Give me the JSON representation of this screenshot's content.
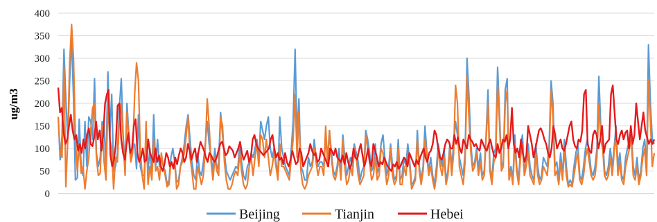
{
  "chart_data": {
    "type": "line",
    "title": "",
    "xlabel": "",
    "ylabel": "ug/m3",
    "ylim": [
      0,
      400
    ],
    "yticks": [
      0,
      50,
      100,
      150,
      200,
      250,
      300,
      350,
      400
    ],
    "grid": "horizontal",
    "legend": "bottom",
    "series": [
      {
        "name": "Beijing",
        "color": "#5B9BD5",
        "values": [
          170,
          75,
          130,
          320,
          210,
          120,
          250,
          345,
          210,
          30,
          35,
          165,
          60,
          40,
          160,
          60,
          170,
          160,
          120,
          255,
          90,
          60,
          80,
          160,
          150,
          60,
          270,
          130,
          220,
          50,
          60,
          90,
          190,
          255,
          130,
          60,
          200,
          130,
          80,
          100,
          110,
          55,
          175,
          60,
          40,
          40,
          130,
          50,
          100,
          40,
          175,
          60,
          120,
          60,
          80,
          60,
          50,
          20,
          30,
          80,
          100,
          70,
          25,
          30,
          60,
          80,
          110,
          150,
          175,
          120,
          70,
          40,
          30,
          90,
          50,
          40,
          70,
          110,
          160,
          110,
          80,
          50,
          100,
          50,
          70,
          180,
          130,
          90,
          50,
          40,
          30,
          40,
          50,
          60,
          55,
          110,
          70,
          40,
          30,
          60,
          70,
          90,
          80,
          100,
          120,
          70,
          160,
          140,
          120,
          150,
          170,
          100,
          80,
          100,
          70,
          40,
          170,
          100,
          80,
          60,
          50,
          40,
          100,
          160,
          320,
          130,
          210,
          60,
          50,
          30,
          30,
          80,
          60,
          70,
          120,
          80,
          60,
          70,
          70,
          60,
          120,
          80,
          140,
          90,
          50,
          40,
          60,
          100,
          40,
          130,
          80,
          40,
          60,
          80,
          60,
          110,
          90,
          70,
          30,
          50,
          60,
          140,
          120,
          90,
          50,
          60,
          110,
          45,
          60,
          110,
          130,
          80,
          40,
          60,
          110,
          60,
          30,
          40,
          120,
          30,
          40,
          80,
          60,
          110,
          70,
          20,
          25,
          40,
          140,
          60,
          30,
          60,
          150,
          90,
          50,
          80,
          40,
          20,
          60,
          110,
          80,
          60,
          100,
          30,
          50,
          110,
          60,
          110,
          160,
          130,
          80,
          60,
          40,
          90,
          300,
          220,
          110,
          60,
          70,
          100,
          55,
          90,
          40,
          50,
          130,
          230,
          60,
          30,
          90,
          100,
          280,
          180,
          60,
          70,
          230,
          255,
          40,
          60,
          30,
          130,
          60,
          30,
          100,
          130,
          50,
          70,
          110,
          60,
          40,
          30,
          110,
          60,
          30,
          40,
          80,
          70,
          60,
          110,
          250,
          200,
          60,
          70,
          30,
          90,
          40,
          120,
          60,
          20,
          30,
          20,
          60,
          90,
          110,
          40,
          30,
          60,
          100,
          120,
          90,
          50,
          40,
          60,
          100,
          260,
          150,
          130,
          50,
          40,
          60,
          100,
          60,
          100,
          150,
          60,
          90,
          40,
          30,
          80,
          100,
          120,
          140,
          60,
          40,
          80,
          30,
          50,
          100,
          120,
          60,
          330,
          200,
          120,
          110
        ]
      },
      {
        "name": "Tianjin",
        "color": "#ED7D31",
        "values": [
          170,
          90,
          80,
          280,
          15,
          120,
          290,
          375,
          300,
          120,
          50,
          110,
          45,
          60,
          10,
          50,
          80,
          140,
          190,
          200,
          80,
          40,
          45,
          150,
          70,
          30,
          200,
          120,
          100,
          10,
          80,
          70,
          160,
          200,
          120,
          40,
          180,
          120,
          70,
          90,
          220,
          290,
          250,
          90,
          40,
          10,
          160,
          20,
          60,
          30,
          120,
          50,
          60,
          30,
          90,
          60,
          40,
          15,
          20,
          70,
          60,
          70,
          10,
          20,
          60,
          70,
          90,
          130,
          170,
          80,
          50,
          10,
          10,
          60,
          40,
          20,
          40,
          100,
          210,
          150,
          70,
          30,
          80,
          50,
          40,
          170,
          150,
          70,
          30,
          10,
          10,
          20,
          40,
          50,
          40,
          90,
          50,
          20,
          10,
          20,
          60,
          80,
          40,
          80,
          110,
          60,
          130,
          120,
          80,
          120,
          80,
          40,
          60,
          90,
          60,
          30,
          110,
          60,
          60,
          50,
          40,
          30,
          80,
          120,
          220,
          80,
          180,
          50,
          20,
          10,
          20,
          40,
          50,
          60,
          100,
          70,
          40,
          60,
          60,
          40,
          150,
          60,
          140,
          80,
          40,
          30,
          50,
          80,
          30,
          120,
          60,
          20,
          30,
          60,
          40,
          100,
          80,
          40,
          20,
          30,
          40,
          130,
          100,
          70,
          30,
          40,
          80,
          30,
          40,
          100,
          90,
          60,
          20,
          40,
          100,
          40,
          20,
          30,
          100,
          20,
          20,
          60,
          40,
          90,
          60,
          10,
          20,
          30,
          120,
          50,
          20,
          50,
          120,
          80,
          40,
          60,
          30,
          10,
          40,
          100,
          60,
          40,
          80,
          20,
          40,
          100,
          40,
          90,
          240,
          200,
          60,
          40,
          20,
          70,
          260,
          170,
          90,
          50,
          60,
          90,
          40,
          70,
          30,
          40,
          120,
          200,
          50,
          20,
          70,
          80,
          240,
          160,
          50,
          60,
          200,
          230,
          30,
          50,
          20,
          110,
          50,
          20,
          80,
          110,
          40,
          60,
          90,
          40,
          30,
          20,
          90,
          40,
          20,
          30,
          60,
          50,
          40,
          90,
          230,
          170,
          40,
          50,
          20,
          70,
          30,
          100,
          40,
          15,
          20,
          15,
          40,
          70,
          90,
          30,
          20,
          40,
          80,
          100,
          70,
          40,
          30,
          40,
          80,
          200,
          120,
          100,
          40,
          30,
          40,
          80,
          40,
          90,
          130,
          40,
          70,
          30,
          20,
          60,
          80,
          100,
          120,
          40,
          30,
          60,
          20,
          40,
          80,
          100,
          40,
          250,
          160,
          60,
          90
        ]
      },
      {
        "name": "Hebei",
        "color": "#E41A1C",
        "values": [
          235,
          180,
          190,
          135,
          110,
          120,
          150,
          175,
          140,
          120,
          130,
          95,
          110,
          90,
          120,
          100,
          130,
          145,
          110,
          105,
          125,
          160,
          120,
          140,
          95,
          130,
          200,
          220,
          230,
          85,
          60,
          75,
          110,
          195,
          200,
          120,
          90,
          75,
          110,
          135,
          90,
          100,
          150,
          165,
          90,
          70,
          80,
          100,
          70,
          75,
          120,
          90,
          80,
          70,
          100,
          70,
          85,
          60,
          50,
          65,
          90,
          80,
          60,
          70,
          55,
          80,
          65,
          85,
          100,
          90,
          70,
          80,
          110,
          95,
          75,
          90,
          100,
          70,
          95,
          115,
          105,
          95,
          80,
          70,
          90,
          85,
          75,
          70,
          80,
          95,
          110,
          115,
          100,
          85,
          90,
          105,
          100,
          95,
          80,
          90,
          100,
          115,
          90,
          75,
          85,
          95,
          70,
          80,
          120,
          130,
          110,
          100,
          95,
          90,
          85,
          90,
          95,
          100,
          120,
          130,
          100,
          80,
          90,
          75,
          80,
          65,
          90,
          70,
          60,
          75,
          95,
          80,
          65,
          70,
          100,
          90,
          60,
          70,
          80,
          90,
          110,
          95,
          85,
          90,
          70,
          75,
          100,
          90,
          80,
          70,
          60,
          100,
          95,
          85,
          100,
          80,
          75,
          70,
          85,
          65,
          90,
          70,
          55,
          70,
          100,
          80,
          75,
          95,
          110,
          85,
          60,
          75,
          100,
          70,
          60,
          110,
          95,
          80,
          60,
          70,
          65,
          80,
          70,
          60,
          55,
          50,
          65,
          60,
          70,
          55,
          60,
          70,
          80,
          75,
          60,
          90,
          80,
          70,
          60,
          75,
          65,
          80,
          90,
          100,
          80,
          70,
          90,
          95,
          110,
          140,
          130,
          100,
          80,
          75,
          90,
          110,
          120,
          115,
          100,
          100,
          130,
          110,
          125,
          100,
          90,
          120,
          110,
          100,
          130,
          120,
          115,
          105,
          110,
          100,
          95,
          120,
          110,
          100,
          95,
          110,
          120,
          100,
          85,
          80,
          110,
          90,
          100,
          120,
          115,
          130,
          100,
          120,
          190,
          110,
          90,
          100,
          80,
          120,
          90,
          70,
          85,
          150,
          130,
          110,
          80,
          100,
          120,
          140,
          145,
          135,
          120,
          110,
          90,
          80,
          100,
          150,
          130,
          100,
          110,
          120,
          100,
          95,
          110,
          130,
          150,
          160,
          120,
          105,
          100,
          120,
          115,
          140,
          220,
          230,
          110,
          95,
          90,
          130,
          140,
          130,
          100,
          120,
          150,
          90,
          110,
          115,
          120,
          220,
          240,
          180,
          120,
          110,
          130,
          140,
          120,
          135,
          140,
          100,
          150,
          110,
          130,
          200,
          160,
          120,
          150,
          180,
          140,
          125,
          110,
          120,
          110,
          120
        ]
      }
    ]
  }
}
